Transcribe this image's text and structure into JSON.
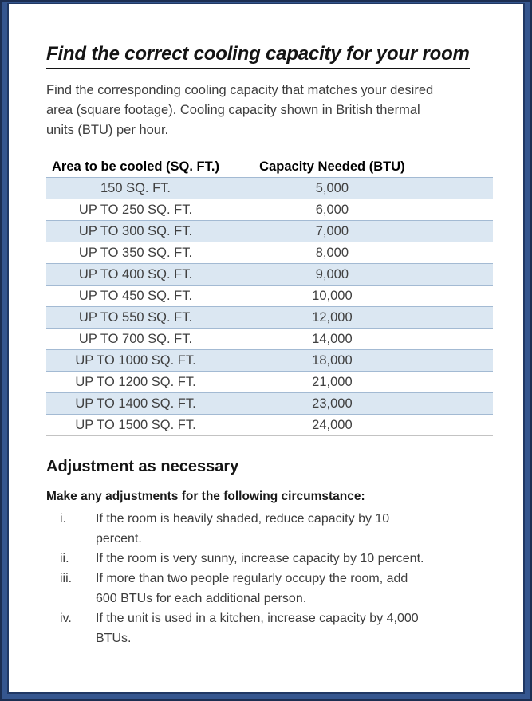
{
  "page": {
    "title": "Find the correct cooling capacity for your room",
    "intro_lines": [
      "Find the corresponding cooling capacity that matches your desired",
      "area (square footage). Cooling capacity shown in British thermal",
      "units (BTU) per hour."
    ]
  },
  "table": {
    "headers": [
      "Area to be cooled (SQ. FT.)",
      "Capacity Needed (BTU)"
    ],
    "rows": [
      [
        "150 SQ. FT.",
        "5,000"
      ],
      [
        "UP TO 250 SQ. FT.",
        "6,000"
      ],
      [
        "UP TO 300 SQ. FT.",
        "7,000"
      ],
      [
        "UP TO 350 SQ. FT.",
        "8,000"
      ],
      [
        "UP TO 400 SQ. FT.",
        "9,000"
      ],
      [
        "UP TO 450 SQ. FT.",
        "10,000"
      ],
      [
        "UP TO 550 SQ. FT.",
        "12,000"
      ],
      [
        "UP TO 700 SQ. FT.",
        "14,000"
      ],
      [
        "UP TO 1000 SQ. FT.",
        "18,000"
      ],
      [
        "UP TO 1200 SQ. FT.",
        "21,000"
      ],
      [
        "UP TO 1400 SQ. FT.",
        "23,000"
      ],
      [
        "UP TO 1500 SQ. FT.",
        "24,000"
      ]
    ]
  },
  "adjustment": {
    "heading": "Adjustment as necessary",
    "lead": "Make any adjustments for the following circumstance:",
    "items": [
      {
        "marker": "i.",
        "lines": [
          "If the room is heavily shaded, reduce capacity by 10",
          "percent."
        ]
      },
      {
        "marker": "ii.",
        "lines": [
          "If the room is very sunny, increase capacity by 10 percent."
        ]
      },
      {
        "marker": "iii.",
        "lines": [
          "If more than two people regularly occupy the room, add",
          "600 BTUs for each additional person."
        ]
      },
      {
        "marker": "iv.",
        "lines": [
          "If the unit is used in a kitchen, increase capacity by 4,000",
          "BTUs."
        ]
      }
    ]
  },
  "colors": {
    "border_outer_navy": "#1c2e52",
    "border_band_blue": "#35568f",
    "border_inner_navy": "#203864",
    "table_row_shade": "#dbe7f2",
    "table_row_line": "#a3bad3",
    "table_rule_gray": "#c3c3c3",
    "body_text": "#3d3d3d"
  }
}
